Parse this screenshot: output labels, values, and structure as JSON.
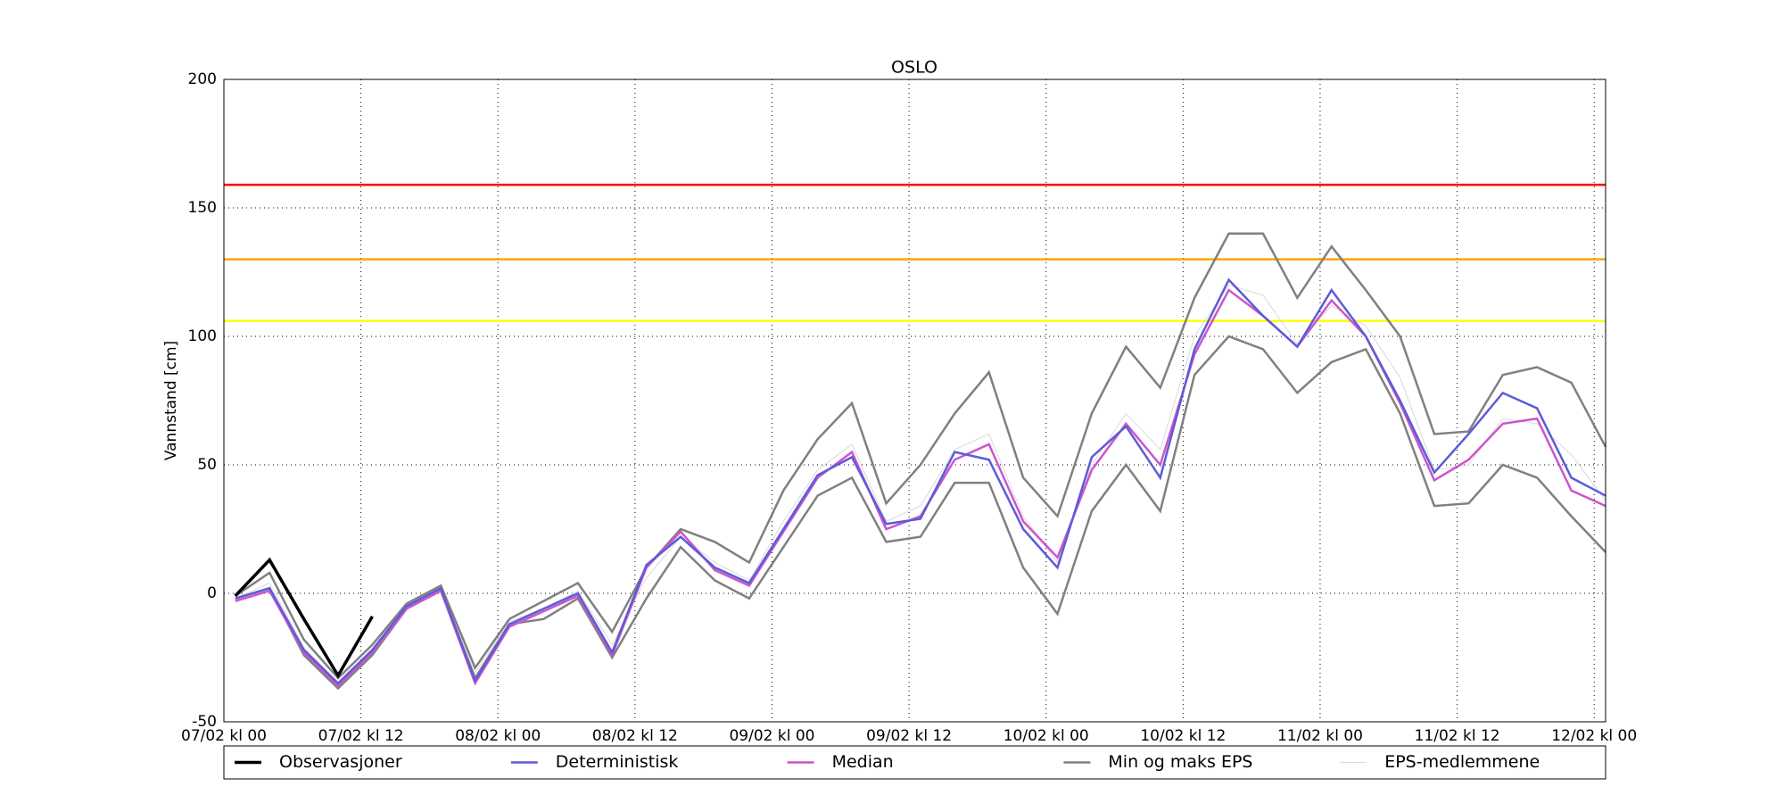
{
  "chart_data": {
    "type": "line",
    "title": "OSLO",
    "y_label": "Vannstand [cm]",
    "x": [
      1,
      4,
      7,
      10,
      13,
      16,
      19,
      22,
      25,
      28,
      31,
      34,
      37,
      40,
      43,
      46,
      49,
      52,
      55,
      58,
      61,
      64,
      67,
      70,
      73,
      76,
      79,
      82,
      85,
      88,
      91,
      94,
      97,
      100,
      103,
      106,
      109,
      112,
      115,
      118,
      121
    ],
    "xlim": [
      0,
      121
    ],
    "ylim": [
      -50,
      200
    ],
    "xticks": [
      {
        "value": 0,
        "label": "07/02 kl 00"
      },
      {
        "value": 12,
        "label": "07/02 kl 12"
      },
      {
        "value": 24,
        "label": "08/02 kl 00"
      },
      {
        "value": 36,
        "label": "08/02 kl 12"
      },
      {
        "value": 48,
        "label": "09/02 kl 00"
      },
      {
        "value": 60,
        "label": "09/02 kl 12"
      },
      {
        "value": 72,
        "label": "10/02 kl 00"
      },
      {
        "value": 84,
        "label": "10/02 kl 12"
      },
      {
        "value": 96,
        "label": "11/02 kl 00"
      },
      {
        "value": 108,
        "label": "11/02 kl 12"
      },
      {
        "value": 120,
        "label": "12/02 kl 00"
      }
    ],
    "yticks": [
      -50,
      0,
      50,
      100,
      150,
      200
    ],
    "grid": true,
    "legend": "bottom",
    "hlines": [
      {
        "value": 159,
        "color": "#ff0000"
      },
      {
        "value": 130,
        "color": "#ffa500"
      },
      {
        "value": 106,
        "color": "#ffff00"
      }
    ],
    "series": [
      {
        "name": "Observasjoner",
        "color": "#000000",
        "width": 3.5,
        "values": [
          -1,
          13,
          -10,
          -32,
          -9,
          null,
          null,
          null,
          null,
          null,
          null,
          null,
          null,
          null,
          null,
          null,
          null,
          null,
          null,
          null,
          null,
          null,
          null,
          null,
          null,
          null,
          null,
          null,
          null,
          null,
          null,
          null,
          null,
          null,
          null,
          null,
          null,
          null,
          null,
          null,
          null
        ]
      },
      {
        "name": "Deterministisk",
        "color": "#5c5cd6",
        "width": 2.5,
        "values": [
          -2,
          2,
          -22,
          -35,
          -22,
          -5,
          2,
          -34,
          -12,
          -6,
          0,
          -23,
          11,
          22,
          10,
          4,
          25,
          46,
          53,
          27,
          29,
          55,
          52,
          25,
          10,
          53,
          65,
          45,
          95,
          122,
          108,
          96,
          118,
          100,
          75,
          47,
          62,
          78,
          72,
          45,
          38
        ]
      },
      {
        "name": "Median",
        "color": "#cc55cc",
        "width": 2.5,
        "values": [
          -3,
          1,
          -23,
          -36,
          -23,
          -6,
          1,
          -35,
          -13,
          -7,
          -1,
          -24,
          10,
          24,
          9,
          3,
          24,
          45,
          55,
          25,
          30,
          52,
          58,
          28,
          14,
          48,
          66,
          50,
          93,
          118,
          108,
          96,
          114,
          100,
          74,
          44,
          52,
          66,
          68,
          40,
          34
        ]
      },
      {
        "name": "Min og maks EPS",
        "color": "#808080",
        "width": 2.5,
        "values": [
          -1,
          8,
          -18,
          -33,
          -20,
          -4,
          3,
          -29,
          -10,
          -3,
          4,
          -15,
          10,
          25,
          20,
          12,
          40,
          60,
          74,
          35,
          50,
          70,
          86,
          45,
          30,
          70,
          96,
          80,
          115,
          140,
          140,
          115,
          135,
          118,
          100,
          62,
          63,
          85,
          88,
          82,
          57
        ]
      },
      {
        "name": null,
        "color": "#808080",
        "width": 2.5,
        "values": [
          -2,
          2,
          -24,
          -37,
          -24,
          -6,
          1,
          -33,
          -12,
          -10,
          -2,
          -25,
          -2,
          18,
          5,
          -2,
          18,
          38,
          45,
          20,
          22,
          43,
          43,
          10,
          -8,
          32,
          50,
          32,
          85,
          100,
          95,
          78,
          90,
          95,
          70,
          34,
          35,
          50,
          45,
          30,
          16
        ]
      },
      {
        "name": "EPS-medlemmene",
        "color": "#d9d9d9",
        "width": 1,
        "values": [
          -2,
          4,
          -21,
          -35,
          -22,
          -5,
          2,
          -31,
          -11,
          -6,
          1,
          -20,
          6,
          22,
          12,
          5,
          28,
          48,
          58,
          28,
          34,
          56,
          62,
          30,
          12,
          50,
          70,
          56,
          100,
          120,
          116,
          97,
          112,
          104,
          84,
          48,
          50,
          68,
          66,
          54,
          36
        ]
      }
    ]
  }
}
